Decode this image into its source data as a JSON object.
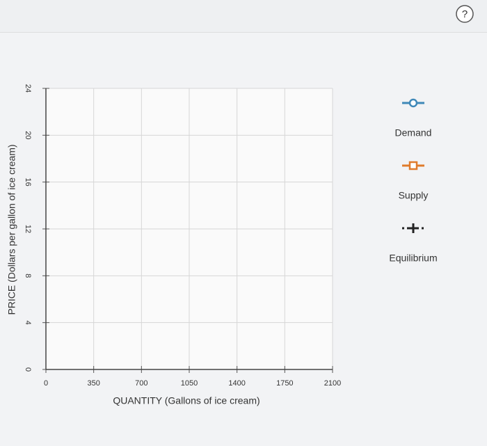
{
  "help": "?",
  "chart_data": {
    "type": "line",
    "x_label": "QUANTITY (Gallons of ice cream)",
    "y_label": "PRICE (Dollars per gallon of ice cream)",
    "xlim": [
      0,
      2100
    ],
    "xticks": [
      0,
      350,
      700,
      1050,
      1400,
      1750,
      2100
    ],
    "ylim": [
      0,
      24
    ],
    "yticks": [
      0,
      4,
      8,
      12,
      16,
      20,
      24
    ],
    "grid": true,
    "series": [
      {
        "name": "Demand",
        "color": "#3f88b8",
        "marker": "circle",
        "values": []
      },
      {
        "name": "Supply",
        "color": "#e07b2c",
        "marker": "square",
        "values": []
      },
      {
        "name": "Equilibrium",
        "color": "#222222",
        "marker": "plus",
        "values": []
      }
    ]
  }
}
